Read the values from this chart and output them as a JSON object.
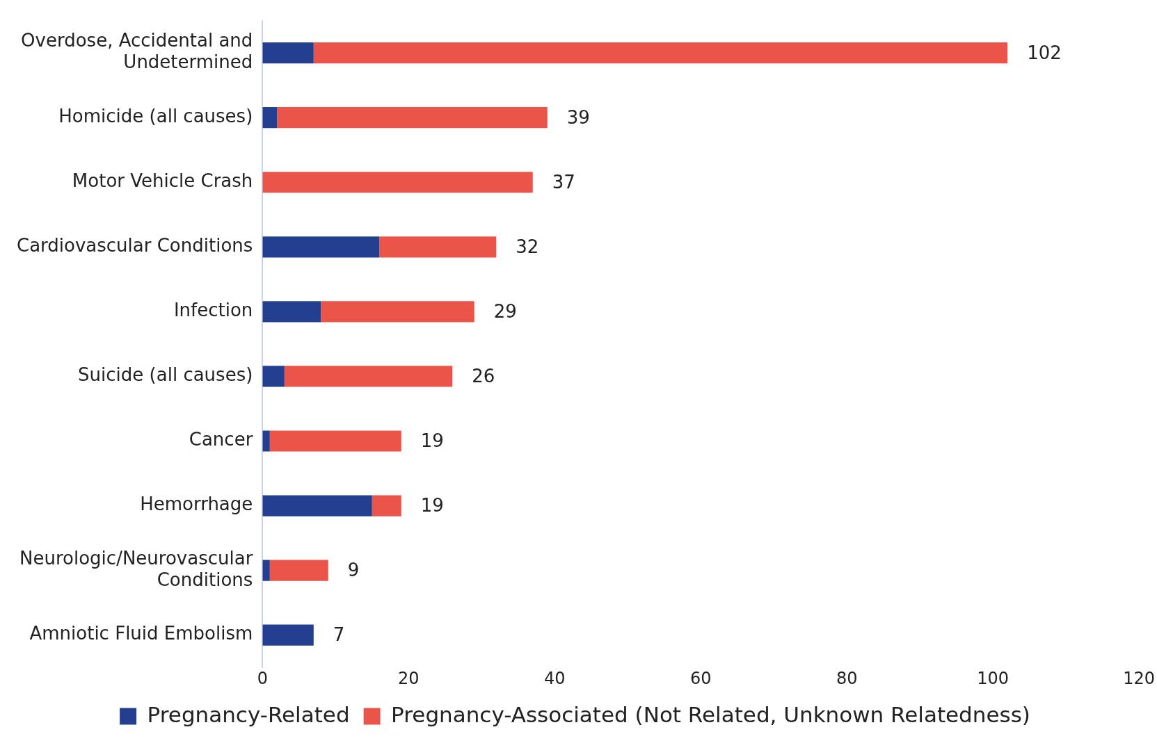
{
  "chart_data": {
    "type": "bar",
    "orientation": "horizontal",
    "stacked": true,
    "categories": [
      "Overdose, Accidental and Undetermined",
      "Homicide (all causes)",
      "Motor Vehicle Crash",
      "Cardiovascular Conditions",
      "Infection",
      "Suicide (all causes)",
      "Cancer",
      "Hemorrhage",
      "Neurologic/Neurovascular Conditions",
      "Amniotic Fluid Embolism"
    ],
    "series": [
      {
        "name": "Pregnancy-Related",
        "color": "#243f8f",
        "values": [
          7,
          2,
          0,
          16,
          8,
          3,
          1,
          15,
          1,
          7
        ]
      },
      {
        "name": "Pregnancy-Associated (Not Related, Unknown Relatedness)",
        "color": "#ea5449",
        "values": [
          95,
          37,
          37,
          16,
          21,
          23,
          18,
          4,
          8,
          0
        ]
      }
    ],
    "totals": [
      "102",
      "39",
      "37",
      "32",
      "29",
      "26",
      "19",
      "19",
      "9",
      "7"
    ],
    "xlim": [
      0,
      120
    ],
    "xticks": [
      0,
      20,
      40,
      60,
      80,
      100,
      120
    ],
    "grid": false,
    "legend": "bottom"
  }
}
